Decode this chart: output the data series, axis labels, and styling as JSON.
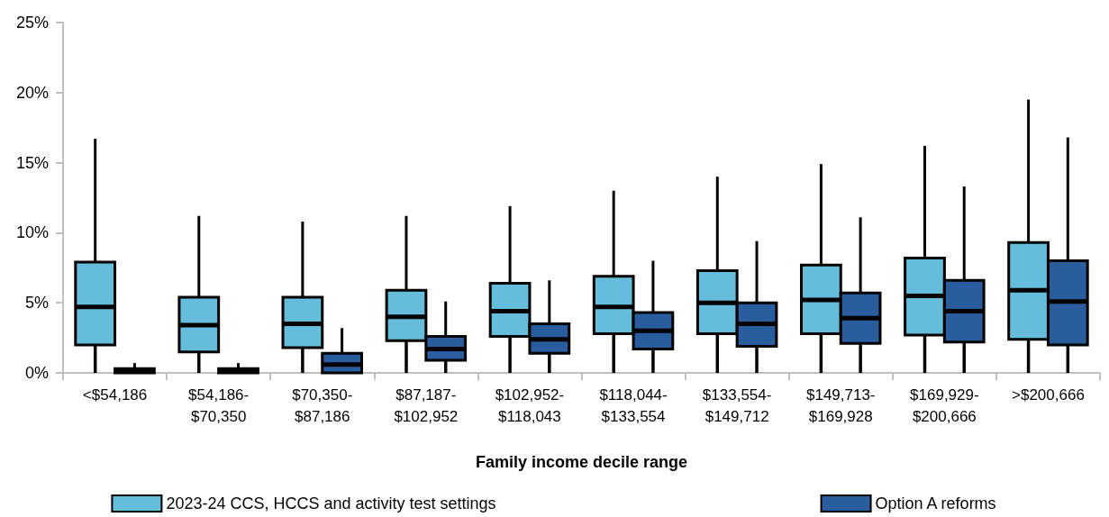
{
  "chart_data": {
    "type": "box",
    "xlabel": "Family income decile range",
    "categories": [
      "<$54,186",
      "$54,186-\n$70,350",
      "$70,350-\n$87,186",
      "$87,187-\n$102,952",
      "$102,952-\n$118,043",
      "$118,044-\n$133,554",
      "$133,554-\n$149,712",
      "$149,713-\n$169,928",
      "$169,929-\n$200,666",
      ">$200,666"
    ],
    "ylim": [
      0,
      25
    ],
    "yticks": [
      {
        "value": 0,
        "label": "0%"
      },
      {
        "value": 5,
        "label": "5%"
      },
      {
        "value": 10,
        "label": "10%"
      },
      {
        "value": 15,
        "label": "15%"
      },
      {
        "value": 20,
        "label": "20%"
      },
      {
        "value": 25,
        "label": "25%"
      }
    ],
    "grid": false,
    "legend": "bottom",
    "series": [
      {
        "name": "2023-24 CCS, HCCS and activity test settings",
        "color": "#66bcdb",
        "boxes": [
          {
            "low": 0,
            "q1": 2.0,
            "median": 4.7,
            "q3": 7.9,
            "high": 16.7
          },
          {
            "low": 0,
            "q1": 1.5,
            "median": 3.4,
            "q3": 5.4,
            "high": 11.2
          },
          {
            "low": 0,
            "q1": 1.8,
            "median": 3.5,
            "q3": 5.4,
            "high": 10.8
          },
          {
            "low": 0,
            "q1": 2.3,
            "median": 4.0,
            "q3": 5.9,
            "high": 11.2
          },
          {
            "low": 0,
            "q1": 2.6,
            "median": 4.4,
            "q3": 6.4,
            "high": 11.9
          },
          {
            "low": 0,
            "q1": 2.8,
            "median": 4.7,
            "q3": 6.9,
            "high": 13.0
          },
          {
            "low": 0,
            "q1": 2.8,
            "median": 5.0,
            "q3": 7.3,
            "high": 14.0
          },
          {
            "low": 0,
            "q1": 2.8,
            "median": 5.2,
            "q3": 7.7,
            "high": 14.9
          },
          {
            "low": 0,
            "q1": 2.7,
            "median": 5.5,
            "q3": 8.2,
            "high": 16.2
          },
          {
            "low": 0,
            "q1": 2.4,
            "median": 5.9,
            "q3": 9.3,
            "high": 19.5
          }
        ]
      },
      {
        "name": "Option A reforms",
        "color": "#2a5d9e",
        "boxes": [
          {
            "low": 0,
            "q1": 0,
            "median": 0.1,
            "q3": 0.3,
            "high": 0.7
          },
          {
            "low": 0,
            "q1": 0,
            "median": 0.1,
            "q3": 0.3,
            "high": 0.7
          },
          {
            "low": 0,
            "q1": 0,
            "median": 0.6,
            "q3": 1.4,
            "high": 3.2
          },
          {
            "low": 0,
            "q1": 0.9,
            "median": 1.7,
            "q3": 2.6,
            "high": 5.1
          },
          {
            "low": 0,
            "q1": 1.4,
            "median": 2.4,
            "q3": 3.5,
            "high": 6.6
          },
          {
            "low": 0,
            "q1": 1.7,
            "median": 3.0,
            "q3": 4.3,
            "high": 8.0
          },
          {
            "low": 0,
            "q1": 1.9,
            "median": 3.5,
            "q3": 5.0,
            "high": 9.4
          },
          {
            "low": 0,
            "q1": 2.1,
            "median": 3.9,
            "q3": 5.7,
            "high": 11.1
          },
          {
            "low": 0,
            "q1": 2.2,
            "median": 4.4,
            "q3": 6.6,
            "high": 13.3
          },
          {
            "low": 0,
            "q1": 2.0,
            "median": 5.1,
            "q3": 8.0,
            "high": 16.8
          }
        ]
      }
    ]
  }
}
